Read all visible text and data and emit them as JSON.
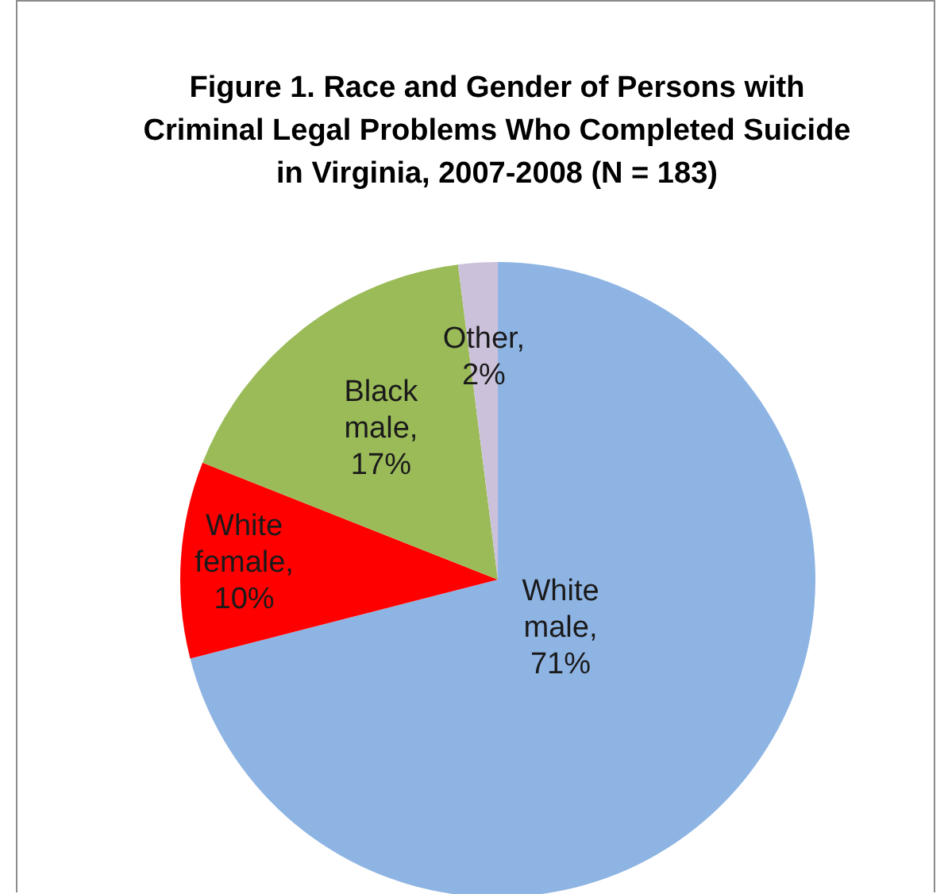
{
  "chart_data": {
    "type": "pie",
    "title": "Figure 1. Race and Gender of Persons with Criminal Legal Problems Who Completed Suicide in Virginia, 2007-2008 (N = 183)",
    "categories": [
      "White male",
      "White female",
      "Black male",
      "Other"
    ],
    "values": [
      71,
      10,
      17,
      2
    ],
    "colors": [
      "#8eb4e3",
      "#ff0000",
      "#9bbb59",
      "#ccc1da"
    ],
    "value_labels": [
      ", 71%",
      ", 10%",
      ", 17%",
      ", 2%"
    ],
    "legend": false
  }
}
